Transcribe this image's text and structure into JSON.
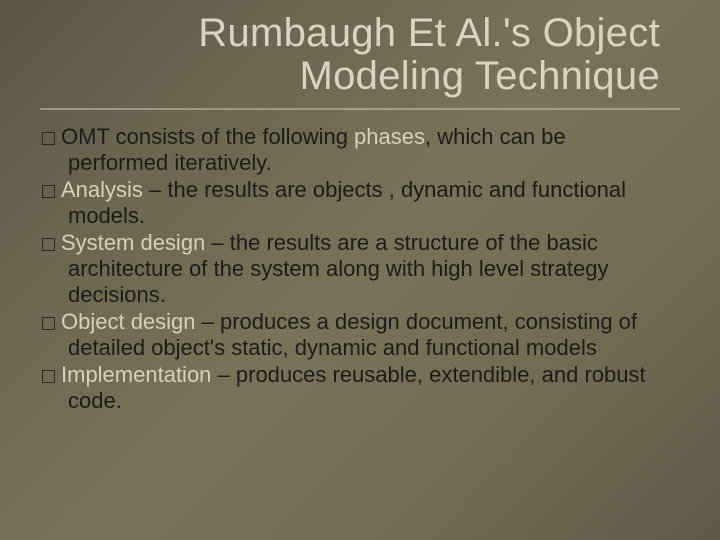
{
  "slide": {
    "background_gradient": [
      "#5a5444",
      "#6d6650",
      "#7a7258",
      "#726a52",
      "#5e5846"
    ],
    "title_color": "#d9d4c2",
    "body_color": "#1c1c1c",
    "keyword_color": "#d6d0bb",
    "divider_color": "#c9c3ae",
    "title_fontsize": 40,
    "body_fontsize": 22,
    "title_line1": "Rumbaugh Et Al.'s Object",
    "title_line2": "Modeling Technique",
    "bullets": [
      {
        "pre": "OMT consists of the following ",
        "kw": "phases",
        "post": ", which can be performed iteratively."
      },
      {
        "pre": "",
        "kw": "Analysis",
        "post": " – the results are objects , dynamic and functional models."
      },
      {
        "pre": "",
        "kw": "System design",
        "post": " – the results are a structure of the basic architecture of the system along with high level strategy decisions."
      },
      {
        "pre": "",
        "kw": "Object design",
        "post": " – produces a design document, consisting of detailed object's static, dynamic and functional models"
      },
      {
        "pre": "",
        "kw": "Implementation",
        "post": " – produces reusable, extendible, and robust code."
      }
    ]
  }
}
